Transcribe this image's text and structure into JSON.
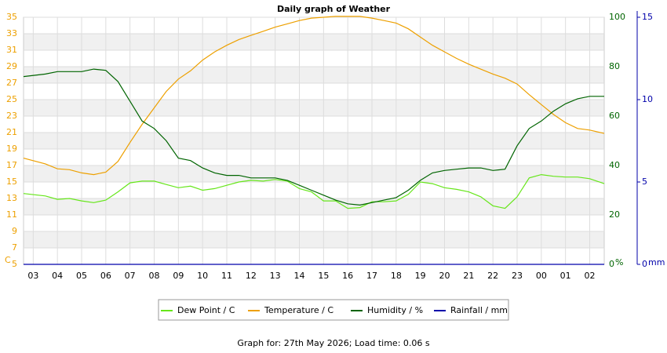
{
  "chart_data": {
    "type": "line",
    "title": "Daily graph of Weather",
    "footer": "Graph for: 27th May 2026; Load time: 0.06 s",
    "y_unit": "C",
    "y2_unit": "%",
    "y3_unit": "mm",
    "legend": "bottom",
    "grid": true,
    "xlim": [
      2.6,
      26.6
    ],
    "xticks": [
      {
        "value": 3,
        "label": "03"
      },
      {
        "value": 4,
        "label": "04"
      },
      {
        "value": 5,
        "label": "05"
      },
      {
        "value": 6,
        "label": "06"
      },
      {
        "value": 7,
        "label": "07"
      },
      {
        "value": 8,
        "label": "08"
      },
      {
        "value": 9,
        "label": "09"
      },
      10,
      11,
      12,
      13,
      14,
      15,
      16,
      17,
      18,
      19,
      20,
      21,
      22,
      23,
      {
        "value": 24,
        "label": "00"
      },
      {
        "value": 25,
        "label": "01"
      },
      {
        "value": 26,
        "label": "02"
      }
    ],
    "ylim": [
      5,
      35
    ],
    "yticks": [
      5,
      7,
      9,
      11,
      13,
      15,
      17,
      19,
      21,
      23,
      25,
      27,
      29,
      31,
      33,
      35
    ],
    "y2lim": [
      0,
      100
    ],
    "y2ticks": [
      0,
      20,
      40,
      60,
      80,
      100
    ],
    "y3lim": [
      0,
      15
    ],
    "y3ticks": [
      0,
      5,
      10,
      15
    ],
    "x": [
      2.6,
      3.5,
      4,
      4.5,
      5,
      5.5,
      6,
      6.5,
      7,
      7.5,
      8,
      8.5,
      9,
      9.5,
      10,
      10.5,
      11,
      11.5,
      12,
      12.5,
      13,
      13.5,
      14,
      14.5,
      15,
      15.5,
      16,
      16.5,
      17,
      17.5,
      18,
      18.5,
      19,
      19.5,
      20,
      20.5,
      21,
      21.5,
      22,
      22.5,
      23,
      23.5,
      24,
      24.5,
      25,
      25.5,
      26,
      26.6
    ],
    "series": [
      {
        "name": "Dew Point / C",
        "color": "#66e61a",
        "axis": "y",
        "values": [
          13.6,
          13.3,
          12.9,
          13,
          12.7,
          12.5,
          12.8,
          13.8,
          14.9,
          15.1,
          15.1,
          14.7,
          14.3,
          14.5,
          14,
          14.2,
          14.6,
          15,
          15.2,
          15.1,
          15.3,
          15.1,
          14.2,
          13.8,
          12.7,
          12.7,
          11.8,
          11.9,
          12.6,
          12.6,
          12.7,
          13.5,
          15,
          14.8,
          14.3,
          14.1,
          13.8,
          13.2,
          12.1,
          11.8,
          13.2,
          15.5,
          15.9,
          15.7,
          15.6,
          15.6,
          15.4,
          14.8
        ]
      },
      {
        "name": "Temperature / C",
        "color": "#eda000",
        "axis": "y",
        "values": [
          17.9,
          17.2,
          16.6,
          16.5,
          16.1,
          15.9,
          16.2,
          17.5,
          19.8,
          22,
          24,
          26,
          27.5,
          28.5,
          29.8,
          30.8,
          31.6,
          32.3,
          32.8,
          33.3,
          33.8,
          34.2,
          34.6,
          34.9,
          35,
          35.1,
          35.1,
          35.1,
          34.9,
          34.6,
          34.3,
          33.6,
          32.6,
          31.6,
          30.8,
          30,
          29.3,
          28.7,
          28.1,
          27.6,
          26.9,
          25.6,
          24.4,
          23.2,
          22.2,
          21.5,
          21.3,
          20.9
        ]
      },
      {
        "name": "Humidity / %",
        "color": "#006400",
        "axis": "y2",
        "values": [
          76,
          77,
          78,
          78,
          78,
          79,
          78.5,
          74,
          66,
          58,
          55,
          50,
          43,
          42,
          39,
          37,
          36,
          36,
          35,
          35,
          35,
          34,
          32,
          30,
          28,
          26,
          24.5,
          24,
          25,
          26,
          27,
          30,
          34,
          37,
          38,
          38.5,
          39,
          39,
          38,
          38.5,
          48,
          55,
          58,
          62,
          65,
          67,
          68,
          68
        ]
      },
      {
        "name": "Rainfall / mm",
        "color": "#0000aa",
        "axis": "y3",
        "values": [
          0,
          0,
          0,
          0,
          0,
          0,
          0,
          0,
          0,
          0,
          0,
          0,
          0,
          0,
          0,
          0,
          0,
          0,
          0,
          0,
          0,
          0,
          0,
          0,
          0,
          0,
          0,
          0,
          0,
          0,
          0,
          0,
          0,
          0,
          0,
          0,
          0,
          0,
          0,
          0,
          0,
          0,
          0,
          0,
          0,
          0,
          0,
          0
        ]
      }
    ]
  }
}
